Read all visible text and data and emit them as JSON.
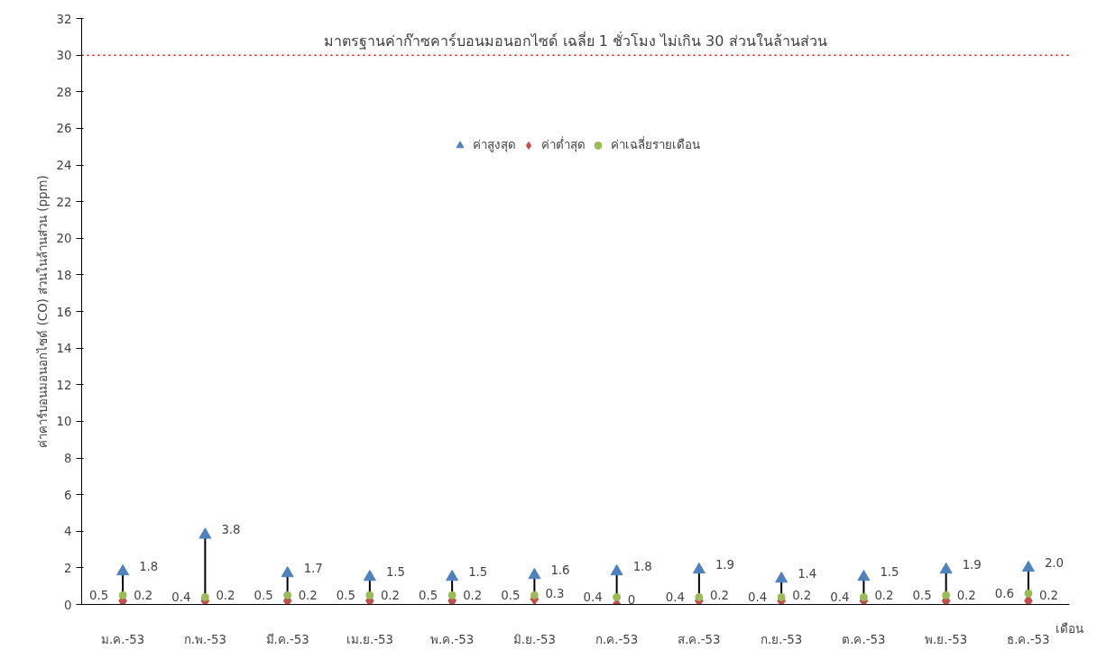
{
  "chart_data": {
    "type": "scatter",
    "xlabel": "เดือน",
    "ylabel": "ค่าคาร์บอนมอนอกไซด์ (CO) ส่วนในล้านส่วน (ppm)",
    "categories": [
      "ม.ค.-53",
      "ก.พ.-53",
      "มี.ค.-53",
      "เม.ย.-53",
      "พ.ค.-53",
      "มิ.ย.-53",
      "ก.ค.-53",
      "ส.ค.-53",
      "ก.ย.-53",
      "ต.ค.-53",
      "พ.ย.-53",
      "ธ.ค.-53"
    ],
    "series": [
      {
        "name": "ค่าสูงสุด",
        "color": "#4f81bd",
        "marker": "triangle",
        "values": [
          1.8,
          3.8,
          1.7,
          1.5,
          1.5,
          1.6,
          1.8,
          1.9,
          1.4,
          1.5,
          1.9,
          2.0
        ],
        "value_labels": [
          "1.8",
          "3.8",
          "1.7",
          "1.5",
          "1.5",
          "1.6",
          "1.8",
          "1.9",
          "1.4",
          "1.5",
          "1.9",
          "2.0"
        ]
      },
      {
        "name": "ค่าต่ำสุด",
        "color": "#c0504d",
        "marker": "diamond",
        "values": [
          0.2,
          0.2,
          0.2,
          0.2,
          0.2,
          0.3,
          0,
          0.2,
          0.2,
          0.2,
          0.2,
          0.2
        ],
        "value_labels": [
          "0.2",
          "0.2",
          "0.2",
          "0.2",
          "0.2",
          "0.3",
          "0",
          "0.2",
          "0.2",
          "0.2",
          "0.2",
          "0.2"
        ]
      },
      {
        "name": "ค่าเฉลี่ยรายเดือน",
        "color": "#9bbb59",
        "marker": "circle",
        "values": [
          0.5,
          0.4,
          0.5,
          0.5,
          0.5,
          0.5,
          0.4,
          0.4,
          0.4,
          0.4,
          0.5,
          0.6
        ],
        "value_labels": [
          "0.5",
          "0.4",
          "0.5",
          "0.5",
          "0.5",
          "0.5",
          "0.4",
          "0.4",
          "0.4",
          "0.4",
          "0.5",
          "0.6"
        ]
      }
    ],
    "ylim": [
      0,
      32
    ],
    "yticks": [
      0,
      2,
      4,
      6,
      8,
      10,
      12,
      14,
      16,
      18,
      20,
      22,
      24,
      26,
      28,
      30,
      32
    ],
    "ref_lines": [
      {
        "axis": "y",
        "value": 30,
        "label": "มาตรฐานค่าก๊าซคาร์บอนมอนอกไซด์ เฉลี่ย 1 ชั่วโมง ไม่เกิน 30 ส่วนในล้านส่วน",
        "color": "#ff0000",
        "line_style": "dotted"
      }
    ],
    "grid": false,
    "legend": "top"
  }
}
